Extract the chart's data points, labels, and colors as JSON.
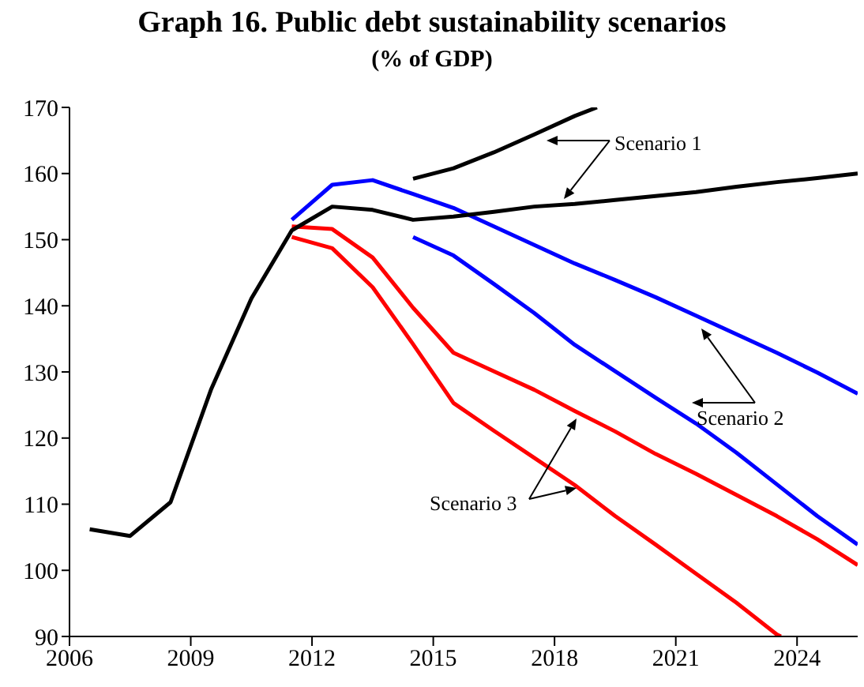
{
  "chart_data": {
    "type": "line",
    "title": "Graph 16. Public debt sustainability scenarios",
    "subtitle": "(% of GDP)",
    "xlim": [
      2006,
      2025.5
    ],
    "xticks": [
      2006,
      2009,
      2012,
      2015,
      2018,
      2021,
      2024
    ],
    "ylim": [
      90,
      170
    ],
    "yticks": [
      90,
      100,
      110,
      120,
      130,
      140,
      150,
      160,
      170
    ],
    "marker": "none",
    "line_style": "solid",
    "annotations": [
      "Scenario 1",
      "Scenario 2",
      "Scenario 3"
    ],
    "series": [
      {
        "color": "#ff0000",
        "x": [
          2011.5,
          2012.5,
          2013.5,
          2014.5,
          2015.5,
          2016.5,
          2017.5,
          2018.5,
          2019.5,
          2020.5,
          2021.5,
          2022.5,
          2023.5,
          2024.5,
          2025.5
        ],
        "values": [
          152,
          151.6,
          147.3,
          139.7,
          132.9,
          130.1,
          127.3,
          124.1,
          121,
          117.6,
          114.6,
          111.4,
          108.2,
          104.7,
          100.8
        ]
      },
      {
        "color": "#ff0000",
        "x": [
          2011.5,
          2012.5,
          2013.5,
          2014.5,
          2015.5,
          2016.5,
          2017.5,
          2018.5,
          2019.5,
          2020.5,
          2021.5,
          2022.5,
          2023.5,
          2023.6
        ],
        "values": [
          150.4,
          148.7,
          142.8,
          134.2,
          125.3,
          121.1,
          117,
          112.9,
          108.2,
          103.9,
          99.5,
          95.1,
          90.3,
          90
        ]
      },
      {
        "color": "#0000ff",
        "x": [
          2011.5,
          2012.5,
          2013.5,
          2014.5,
          2015.5,
          2016.5,
          2017.5,
          2018.5,
          2019.5,
          2020.5,
          2021.5,
          2022.5,
          2023.5,
          2024.5,
          2025.5
        ],
        "values": [
          153,
          158.3,
          159,
          156.9,
          154.8,
          152,
          149.2,
          146.4,
          143.9,
          141.3,
          138.5,
          135.7,
          132.9,
          129.9,
          126.7
        ]
      },
      {
        "color": "#0000ff",
        "x": [
          2014.5,
          2015.5,
          2016.5,
          2017.5,
          2018.5,
          2019.5,
          2020.5,
          2021.5,
          2022.5,
          2023.5,
          2024.5,
          2025.5
        ],
        "values": [
          150.4,
          147.6,
          143.3,
          138.9,
          134.1,
          130.1,
          126.1,
          122.2,
          117.8,
          113,
          108.2,
          103.9
        ]
      },
      {
        "color": "#000000",
        "x": [
          2014.5,
          2015.5,
          2016.5,
          2017.5,
          2018.5,
          2019.05
        ],
        "values": [
          159.2,
          160.8,
          163.2,
          165.9,
          168.7,
          170
        ]
      },
      {
        "color": "#000000",
        "x": [
          2006.5,
          2007.5,
          2008.5,
          2009.5,
          2010.5,
          2011.5,
          2012.5,
          2013.5,
          2014.5,
          2015.5,
          2016.5,
          2017.5,
          2018.5,
          2019.5,
          2020.5,
          2021.5,
          2022.5,
          2023.5,
          2024.5,
          2025.5
        ],
        "values": [
          106.2,
          105.2,
          110.3,
          127.3,
          141.1,
          151.4,
          155,
          154.5,
          153,
          153.5,
          154.2,
          155,
          155.4,
          156,
          156.6,
          157.2,
          158,
          158.7,
          159.3,
          160
        ]
      }
    ]
  }
}
